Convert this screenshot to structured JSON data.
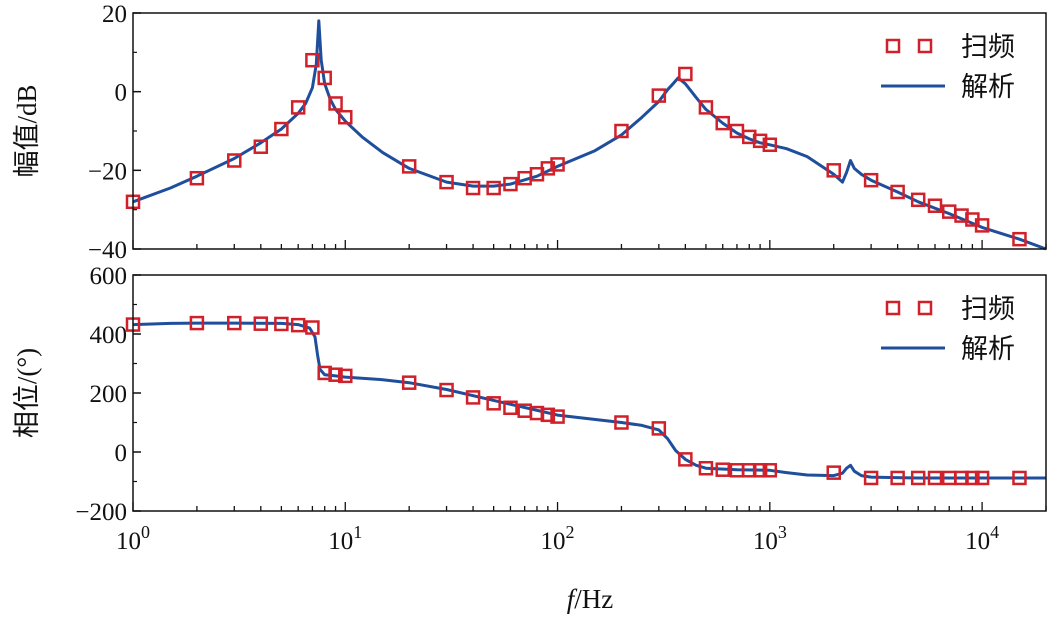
{
  "chart_data": [
    {
      "type": "line",
      "id": "magnitude",
      "xscale": "log",
      "xlim": [
        1,
        20000
      ],
      "ylim": [
        -40,
        20
      ],
      "yticks": [
        -40,
        -20,
        0,
        20
      ],
      "ytick_labels": [
        "−40",
        "−20",
        "0",
        "20"
      ],
      "ylabel": "幅值/dB",
      "xlabel": "",
      "legend": {
        "position": "top-right",
        "scatter_label": "扫频",
        "line_label": "解析"
      },
      "colors": {
        "scatter": "#d0202a",
        "line": "#1f4e9c"
      },
      "series": [
        {
          "name": "扫频",
          "kind": "scatter",
          "x": [
            1,
            2,
            3,
            4,
            5,
            6,
            7,
            8,
            9,
            10,
            20,
            30,
            40,
            50,
            60,
            70,
            80,
            90,
            100,
            200,
            300,
            400,
            500,
            600,
            700,
            800,
            900,
            1000,
            2000,
            3000,
            4000,
            5000,
            6000,
            7000,
            8000,
            9000,
            10000,
            15000
          ],
          "y": [
            -28,
            -22,
            -17.5,
            -14,
            -9.5,
            -4,
            8,
            3.5,
            -3,
            -6.5,
            -19,
            -23,
            -24.5,
            -24.5,
            -23.5,
            -22,
            -21,
            -19.5,
            -18.5,
            -10,
            -1,
            4.5,
            -4,
            -8,
            -10,
            -11.5,
            -12.5,
            -13.5,
            -20,
            -22.5,
            -25.5,
            -27.5,
            -29,
            -30.5,
            -31.5,
            -32.5,
            -34,
            -37.5
          ]
        },
        {
          "name": "解析",
          "kind": "line",
          "x": [
            1,
            1.5,
            2,
            3,
            4,
            5,
            6,
            6.5,
            7,
            7.3,
            7.5,
            7.7,
            8,
            8.5,
            9,
            10,
            12,
            15,
            20,
            30,
            40,
            50,
            60,
            80,
            100,
            150,
            200,
            250,
            300,
            330,
            350,
            370,
            400,
            450,
            500,
            600,
            700,
            800,
            900,
            1000,
            1200,
            1500,
            2000,
            2200,
            2300,
            2400,
            2500,
            2700,
            3000,
            4000,
            5000,
            7000,
            10000,
            15000,
            20000
          ],
          "y": [
            -28,
            -24.5,
            -21.5,
            -17,
            -13,
            -9.5,
            -5.5,
            -3,
            1,
            7,
            18,
            8,
            2,
            -2,
            -4.5,
            -7.5,
            -11.5,
            -15.5,
            -19.5,
            -23,
            -24,
            -24,
            -23.5,
            -21.5,
            -19,
            -15,
            -11,
            -6.5,
            -2.5,
            0.5,
            2,
            3.5,
            2,
            -1.5,
            -4.5,
            -8,
            -10.5,
            -12,
            -13,
            -13.5,
            -14.5,
            -16.5,
            -21,
            -23,
            -20.5,
            -17.5,
            -19.5,
            -21,
            -22.5,
            -25.5,
            -28,
            -31,
            -34.5,
            -37.5,
            -40
          ]
        }
      ]
    },
    {
      "type": "line",
      "id": "phase",
      "xscale": "log",
      "xlim": [
        1,
        20000
      ],
      "ylim": [
        -200,
        600
      ],
      "yticks": [
        -200,
        0,
        200,
        400,
        600
      ],
      "ytick_labels": [
        "−200",
        "0",
        "200",
        "400",
        "600"
      ],
      "ylabel": "相位/(°)",
      "xlabel_italic": "f",
      "xlabel_rest": "/Hz",
      "xtick_bases": [
        "10",
        "10",
        "10",
        "10",
        "10"
      ],
      "xtick_exponents": [
        "0",
        "1",
        "2",
        "3",
        "4"
      ],
      "legend": {
        "position": "top-right",
        "scatter_label": "扫频",
        "line_label": "解析"
      },
      "colors": {
        "scatter": "#d0202a",
        "line": "#1f4e9c"
      },
      "series": [
        {
          "name": "扫频",
          "kind": "scatter",
          "x": [
            1,
            2,
            3,
            4,
            5,
            6,
            7,
            8,
            9,
            10,
            20,
            30,
            40,
            50,
            60,
            70,
            80,
            90,
            100,
            200,
            300,
            400,
            500,
            600,
            700,
            800,
            900,
            1000,
            2000,
            3000,
            4000,
            5000,
            6000,
            7000,
            8000,
            9000,
            10000,
            15000
          ],
          "y": [
            432,
            437,
            437,
            435,
            434,
            430,
            422,
            268,
            262,
            258,
            235,
            210,
            185,
            165,
            150,
            140,
            132,
            126,
            120,
            100,
            80,
            -25,
            -55,
            -60,
            -62,
            -62,
            -62,
            -62,
            -70,
            -88,
            -88,
            -88,
            -88,
            -88,
            -88,
            -88,
            -88,
            -88
          ]
        },
        {
          "name": "解析",
          "kind": "line",
          "x": [
            1,
            1.5,
            2,
            3,
            5,
            6,
            6.8,
            7.2,
            7.4,
            7.6,
            8,
            9,
            10,
            15,
            20,
            30,
            50,
            100,
            200,
            250,
            300,
            330,
            360,
            400,
            450,
            500,
            700,
            1000,
            1200,
            1500,
            2000,
            2200,
            2300,
            2400,
            2500,
            2700,
            3000,
            5000,
            10000,
            20000
          ],
          "y": [
            432,
            436,
            437,
            437,
            436,
            432,
            420,
            390,
            330,
            280,
            262,
            258,
            254,
            245,
            235,
            212,
            175,
            125,
            100,
            90,
            75,
            45,
            5,
            -25,
            -45,
            -55,
            -60,
            -62,
            -70,
            -78,
            -80,
            -72,
            -55,
            -45,
            -65,
            -80,
            -85,
            -88,
            -88,
            -88
          ]
        }
      ]
    }
  ]
}
